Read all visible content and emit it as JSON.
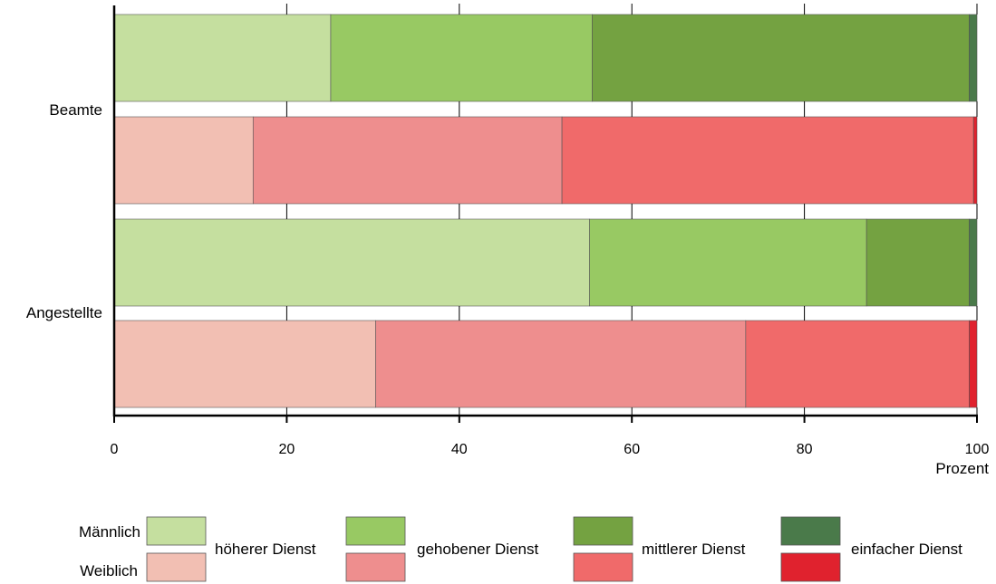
{
  "chart_data": {
    "type": "bar",
    "orientation": "horizontal",
    "stacked": true,
    "categories": [
      "Beamte",
      "Angestellte"
    ],
    "xlabel": "Prozent",
    "xlim": [
      0,
      100
    ],
    "xticks": [
      0,
      20,
      40,
      60,
      80,
      100
    ],
    "grid": "vertical",
    "groups": [
      {
        "category": "Beamte",
        "bars": [
          {
            "gender": "Männlich",
            "values": [
              25.1,
              30.3,
              43.7,
              0.9
            ]
          },
          {
            "gender": "Weiblich",
            "values": [
              16.1,
              35.8,
              47.7,
              0.4
            ]
          }
        ]
      },
      {
        "category": "Angestellte",
        "bars": [
          {
            "gender": "Männlich",
            "values": [
              55.1,
              32.1,
              11.9,
              0.9
            ]
          },
          {
            "gender": "Weiblich",
            "values": [
              30.3,
              42.9,
              25.9,
              0.9
            ]
          }
        ]
      }
    ],
    "segments": [
      "höherer Dienst",
      "gehobener Dienst",
      "mittlerer Dienst",
      "einfacher Dienst"
    ],
    "colors": {
      "Männlich": [
        "#c5df9f",
        "#98c963",
        "#74a241",
        "#4a7a4a"
      ],
      "Weiblich": [
        "#f2bfb3",
        "#ee8e8e",
        "#f06a6a",
        "#e0222e"
      ]
    },
    "legend": {
      "placement": "bottom",
      "genders": [
        "Männlich",
        "Weiblich"
      ],
      "entries": [
        "höherer Dienst",
        "gehobener Dienst",
        "mittlerer Dienst",
        "einfacher Dienst"
      ]
    }
  }
}
